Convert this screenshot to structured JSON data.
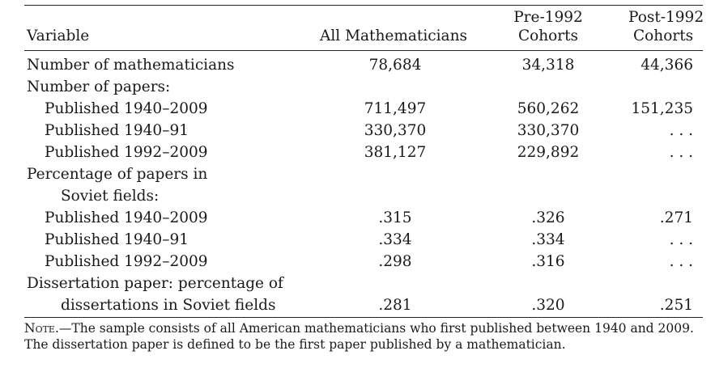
{
  "table": {
    "header": {
      "variable": "Variable",
      "all": "All Mathematicians",
      "pre_line1": "Pre-1992",
      "pre_line2": "Cohorts",
      "post_line1": "Post-1992",
      "post_line2": "Cohorts"
    },
    "rows": [
      {
        "label": "Number of mathematicians",
        "all": "78,684",
        "pre": "34,318",
        "post": "44,366"
      },
      {
        "label": "Number of papers:",
        "all": "",
        "pre": "",
        "post": ""
      },
      {
        "label": "Published 1940–2009",
        "all": "711,497",
        "pre": "560,262",
        "post": "151,235"
      },
      {
        "label": "Published 1940–91",
        "all": "330,370",
        "pre": "330,370",
        "post": ". . ."
      },
      {
        "label": "Published 1992–2009",
        "all": "381,127",
        "pre": "229,892",
        "post": ". . ."
      },
      {
        "label": "Percentage of papers in",
        "all": "",
        "pre": "",
        "post": ""
      },
      {
        "label": "Soviet fields:",
        "all": "",
        "pre": "",
        "post": ""
      },
      {
        "label": "Published 1940–2009",
        "all": ".315",
        "pre": ".326",
        "post": ".271"
      },
      {
        "label": "Published 1940–91",
        "all": ".334",
        "pre": ".334",
        "post": ". . ."
      },
      {
        "label": "Published 1992–2009",
        "all": ".298",
        "pre": ".316",
        "post": ". . ."
      },
      {
        "label": "Dissertation paper: percentage of",
        "all": "",
        "pre": "",
        "post": ""
      },
      {
        "label": "dissertations in Soviet fields",
        "all": ".281",
        "pre": ".320",
        "post": ".251"
      }
    ]
  },
  "note": {
    "lead": "Note",
    "body": ".—The sample consists of all American mathematicians who first published between 1940 and 2009. The dissertation paper is defined to be the first paper published by a mathematician."
  }
}
